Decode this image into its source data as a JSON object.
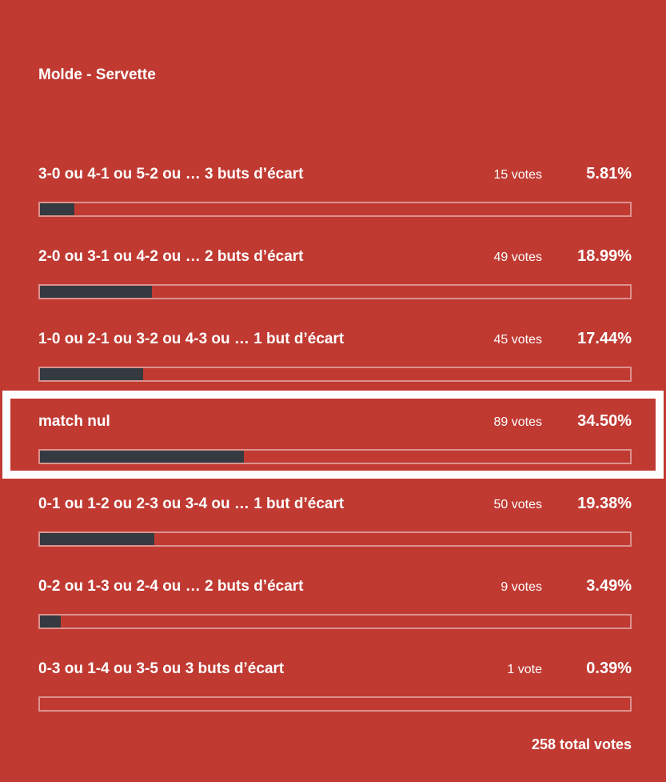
{
  "poll": {
    "title": "Molde - Servette",
    "total_votes_label": "258 total votes",
    "options": [
      {
        "label": "3-0 ou 4-1 ou 5-2 ou … 3 buts d’écart",
        "votes_label": "15 votes",
        "percent_label": "5.81%",
        "percent": 5.81,
        "highlighted": false
      },
      {
        "label": "2-0 ou 3-1 ou 4-2 ou … 2 buts d’écart",
        "votes_label": "49 votes",
        "percent_label": "18.99%",
        "percent": 18.99,
        "highlighted": false
      },
      {
        "label": "1-0 ou 2-1 ou 3-2 ou 4-3 ou … 1 but d’écart",
        "votes_label": "45 votes",
        "percent_label": "17.44%",
        "percent": 17.44,
        "highlighted": false
      },
      {
        "label": "match nul",
        "votes_label": "89 votes",
        "percent_label": "34.50%",
        "percent": 34.5,
        "highlighted": true
      },
      {
        "label": "0-1 ou 1-2 ou 2-3 ou 3-4 ou … 1 but d’écart",
        "votes_label": "50 votes",
        "percent_label": "19.38%",
        "percent": 19.38,
        "highlighted": false
      },
      {
        "label": "0-2 ou 1-3 ou 2-4 ou … 2 buts d’écart",
        "votes_label": "9 votes",
        "percent_label": "3.49%",
        "percent": 3.49,
        "highlighted": false
      },
      {
        "label": "0-3 ou 1-4 ou 3-5 ou 3 buts d’écart",
        "votes_label": "1 vote",
        "percent_label": "0.39%",
        "percent": 0.39,
        "highlighted": false
      }
    ],
    "colors": {
      "background": "#c03a32",
      "bar_fill": "#343a40",
      "bar_border": "rgba(255,255,255,0.45)",
      "highlight_frame": "#ffffff",
      "text": "#ffffff"
    }
  },
  "chart_data": {
    "type": "bar",
    "orientation": "horizontal",
    "title": "Molde - Servette",
    "categories": [
      "3-0 ou 4-1 ou 5-2 ou … 3 buts d’écart",
      "2-0 ou 3-1 ou 4-2 ou … 2 buts d’écart",
      "1-0 ou 2-1 ou 3-2 ou 4-3 ou … 1 but d’écart",
      "match nul",
      "0-1 ou 1-2 ou 2-3 ou 3-4 ou … 1 but d’écart",
      "0-2 ou 1-3 ou 2-4 ou … 2 buts d’écart",
      "0-3 ou 1-4 ou 3-5 ou 3 buts d’écart"
    ],
    "values": [
      5.81,
      18.99,
      17.44,
      34.5,
      19.38,
      3.49,
      0.39
    ],
    "votes": [
      15,
      49,
      45,
      89,
      50,
      9,
      1
    ],
    "total_votes": 258,
    "xlabel": "",
    "ylabel": "",
    "xlim": [
      0,
      100
    ],
    "grid": false,
    "legend": false,
    "highlighted_category": "match nul"
  }
}
